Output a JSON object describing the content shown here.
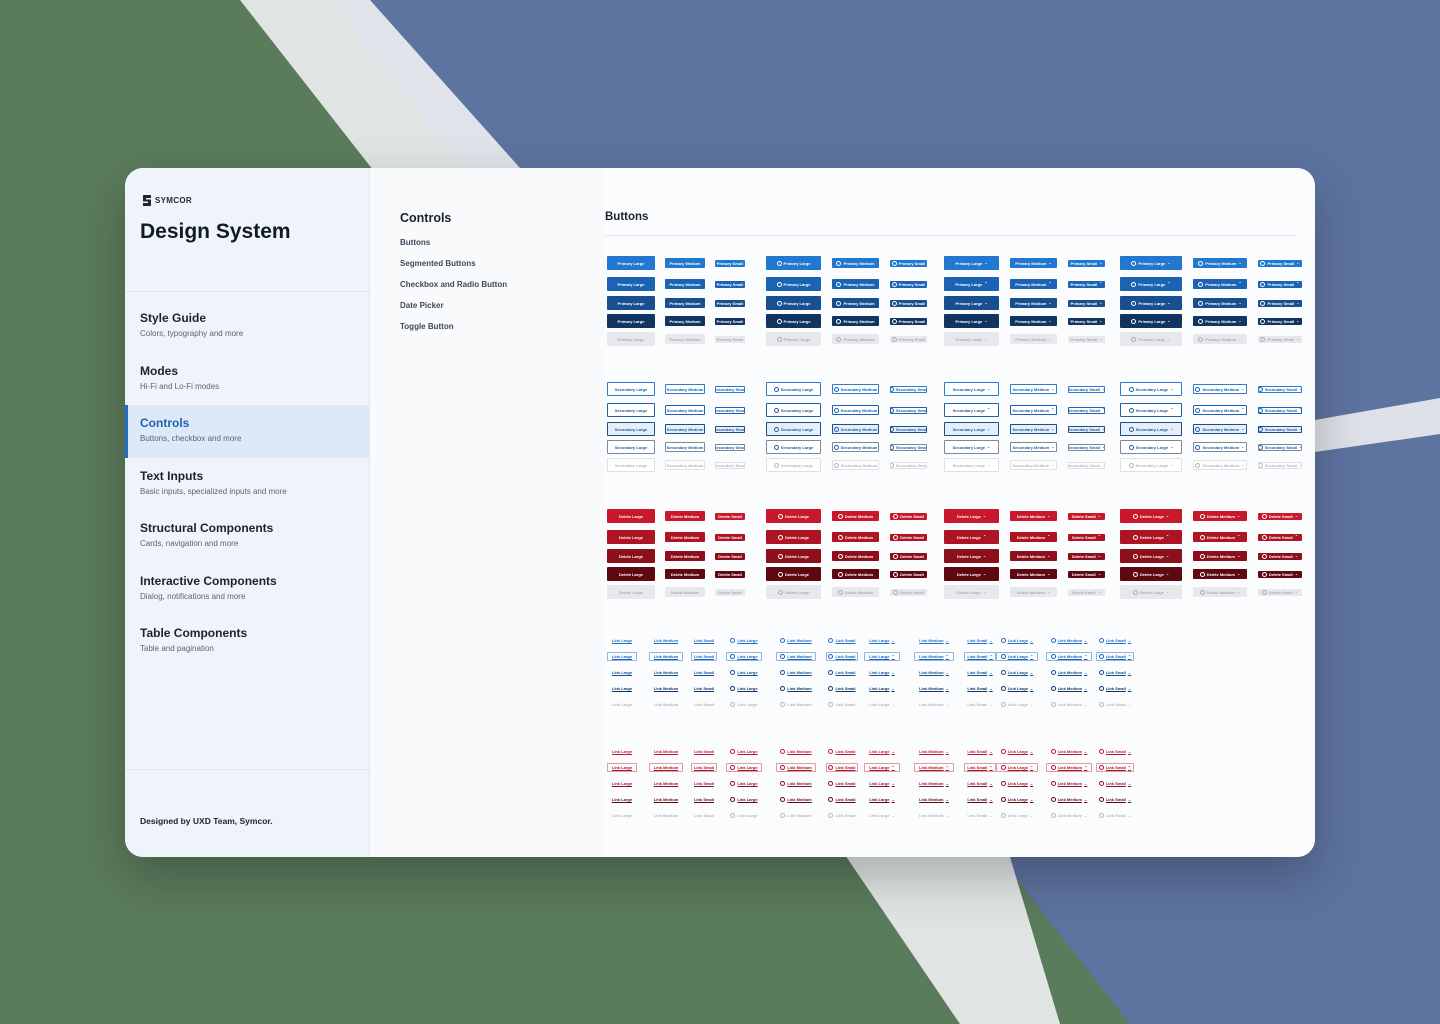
{
  "brand": {
    "name": "SYMCOR"
  },
  "sidebar": {
    "title": "Design System",
    "items": [
      {
        "label": "Style Guide",
        "sub": "Colors, typography and more"
      },
      {
        "label": "Modes",
        "sub": "Hi-Fi and Lo-Fi modes"
      },
      {
        "label": "Controls",
        "sub": "Buttons, checkbox and more"
      },
      {
        "label": "Text Inputs",
        "sub": "Basic inputs, specialized inputs and more"
      },
      {
        "label": "Structural Components",
        "sub": "Cards, navigation and more"
      },
      {
        "label": "Interactive Components",
        "sub": "Dialog, notifications and more"
      },
      {
        "label": "Table Components",
        "sub": "Table and pagination"
      }
    ],
    "active_index": 2,
    "credit": "Designed by UXD Team, Symcor."
  },
  "controls": {
    "title": "Controls",
    "items": [
      "Buttons",
      "Segmented Buttons",
      "Checkbox and Radio Button",
      "Date Picker",
      "Toggle Button"
    ]
  },
  "content": {
    "title": "Buttons"
  },
  "colors": {
    "accent": "#1d63b0",
    "primary": [
      "#2277cf",
      "#1c64b3",
      "#174f8f",
      "#0f3560",
      "#e6e8ec"
    ],
    "delete": [
      "#c8192c",
      "#ad1424",
      "#8c0f1c",
      "#5e0912",
      "#e6e8ec"
    ]
  },
  "button_kinds": [
    {
      "kind": "primary",
      "sizes": [
        "Primary Large",
        "Primary Medium",
        "Primary Small"
      ]
    },
    {
      "kind": "secondary",
      "sizes": [
        "Secondary Large",
        "Secondary Medium",
        "Secondary Small"
      ]
    },
    {
      "kind": "delete",
      "sizes": [
        "Delete Large",
        "Delete Medium",
        "Delete Small"
      ]
    },
    {
      "kind": "link",
      "sizes": [
        "Link Large",
        "Link Medium",
        "Link Small"
      ]
    },
    {
      "kind": "link-danger",
      "sizes": [
        "Link Large",
        "Link Medium",
        "Link Small"
      ]
    }
  ],
  "variants": [
    "plain",
    "icon",
    "chevron",
    "icon-chevron"
  ]
}
